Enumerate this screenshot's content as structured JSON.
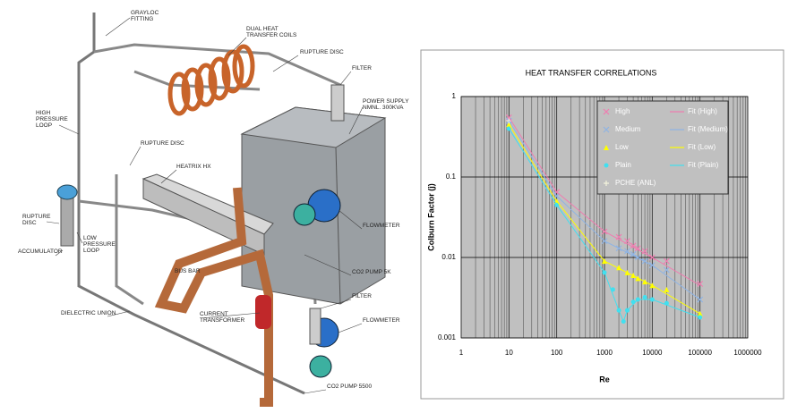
{
  "diagram": {
    "labels": [
      {
        "lines": [
          "GRAYLOC",
          "FITTING"
        ]
      },
      {
        "lines": [
          "DUAL HEAT",
          "TRANSFER COILS"
        ]
      },
      {
        "lines": [
          "RUPTURE DISC"
        ]
      },
      {
        "lines": [
          "FILTER"
        ]
      },
      {
        "lines": [
          "POWER SUPPLY",
          "NMNL. 300KVA"
        ]
      },
      {
        "lines": [
          "HIGH",
          "PRESSURE",
          "LOOP"
        ]
      },
      {
        "lines": [
          "RUPTURE DISC"
        ]
      },
      {
        "lines": [
          "HEATRIX HX"
        ]
      },
      {
        "lines": [
          "RUPTURE",
          "DISC"
        ]
      },
      {
        "lines": [
          "LOW",
          "PRESSURE",
          "LOOP"
        ]
      },
      {
        "lines": [
          "ACCUMULATOR"
        ]
      },
      {
        "lines": [
          "FLOWMETER"
        ]
      },
      {
        "lines": [
          "CO2 PUMP 5K"
        ]
      },
      {
        "lines": [
          "FILTER"
        ]
      },
      {
        "lines": [
          "BUS BAR"
        ]
      },
      {
        "lines": [
          "CURRENT",
          "TRANSFORMER"
        ]
      },
      {
        "lines": [
          "FLOWMETER"
        ]
      },
      {
        "lines": [
          "DIELECTRIC UNION"
        ]
      },
      {
        "lines": [
          "CO2 PUMP 5500"
        ]
      }
    ]
  },
  "chart_data": {
    "type": "scatter",
    "title": "HEAT TRANSFER CORRELATIONS",
    "x_label": "Re",
    "y_label": "Colburn Factor (j)",
    "xscale": "log",
    "yscale": "log",
    "xlim": [
      1,
      1000000
    ],
    "xticks": [
      1,
      10,
      100,
      1000,
      10000,
      100000,
      1000000
    ],
    "ylim": [
      0.001,
      1
    ],
    "yticks": [
      0.001,
      0.01,
      0.1,
      1
    ],
    "grid": true,
    "legend": "top-right",
    "series": [
      {
        "name": "High",
        "color": "#f07cb0",
        "marker": "x",
        "x": [
          10,
          100,
          1000,
          2000,
          3000,
          4000,
          5000,
          7000,
          10000,
          20000,
          100000
        ],
        "values": [
          0.55,
          0.065,
          0.021,
          0.018,
          0.016,
          0.014,
          0.013,
          0.012,
          0.01,
          0.009,
          0.0047
        ]
      },
      {
        "name": "Medium",
        "color": "#8fb4e4",
        "marker": "x",
        "x": [
          10,
          100,
          1000,
          2000,
          3000,
          4000,
          5000,
          7000,
          10000,
          20000,
          100000
        ],
        "values": [
          0.5,
          0.058,
          0.016,
          0.013,
          0.012,
          0.011,
          0.01,
          0.009,
          0.008,
          0.007,
          0.003
        ]
      },
      {
        "name": "Low",
        "color": "#ffff00",
        "marker": "triangle",
        "x": [
          10,
          100,
          1000,
          2000,
          3000,
          4000,
          5000,
          7000,
          10000,
          20000,
          100000
        ],
        "values": [
          0.45,
          0.05,
          0.009,
          0.0075,
          0.0065,
          0.006,
          0.0055,
          0.005,
          0.0045,
          0.004,
          0.002
        ]
      },
      {
        "name": "Plain",
        "color": "#40e0f0",
        "marker": "circle",
        "x": [
          10,
          100,
          1000,
          1500,
          2000,
          2500,
          3000,
          4000,
          5000,
          7000,
          10000,
          20000,
          100000
        ],
        "values": [
          0.4,
          0.045,
          0.0065,
          0.004,
          0.0022,
          0.0016,
          0.0022,
          0.0028,
          0.003,
          0.0032,
          0.003,
          0.0027,
          0.0018
        ]
      },
      {
        "name": "PCHE (ANL)",
        "color": "#f4f4dc",
        "marker": "plus",
        "x": [
          10
        ],
        "values": [
          0.5
        ]
      },
      {
        "name": "Fit (High)",
        "color": "#f07cb0",
        "marker": "line",
        "x": [
          10,
          100,
          1000,
          10000,
          100000
        ],
        "values": [
          0.55,
          0.065,
          0.021,
          0.01,
          0.0045
        ]
      },
      {
        "name": "Fit (Medium)",
        "color": "#8fb4e4",
        "marker": "line",
        "x": [
          10,
          100,
          1000,
          10000,
          100000
        ],
        "values": [
          0.5,
          0.058,
          0.016,
          0.008,
          0.003
        ]
      },
      {
        "name": "Fit (Low)",
        "color": "#ffff00",
        "marker": "line",
        "x": [
          10,
          100,
          1000,
          10000,
          100000
        ],
        "values": [
          0.45,
          0.05,
          0.009,
          0.0045,
          0.002
        ]
      },
      {
        "name": "Fit (Plain)",
        "color": "#40e0f0",
        "marker": "line",
        "x": [
          10,
          100,
          1000,
          2000,
          2500,
          3000,
          5000,
          10000,
          100000
        ],
        "values": [
          0.4,
          0.045,
          0.0065,
          0.0022,
          0.0016,
          0.0022,
          0.003,
          0.003,
          0.0018
        ]
      }
    ]
  }
}
